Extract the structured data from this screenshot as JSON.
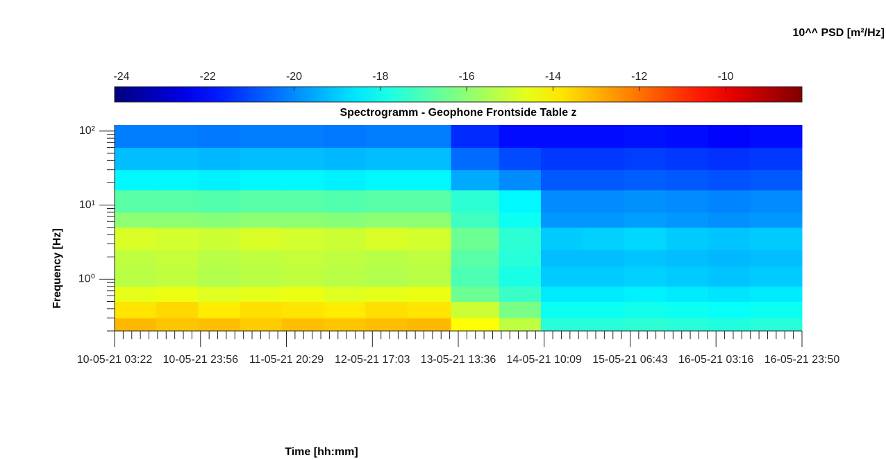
{
  "chart_data": {
    "type": "spectrogram",
    "title": "Spectrogramm - Geophone Frontside Table z",
    "xlabel": "Time [hh:mm]",
    "ylabel": "Frequency [Hz]",
    "colorbar_label": "10^^ PSD [m²/Hz]",
    "colormap": "jet",
    "yscale": "log",
    "xlim": [
      "2021-05-10T03:22",
      "2021-05-16T23:50"
    ],
    "xticks": [
      {
        "value": "2021-05-10T03:22",
        "label": "10-05-21 03:22"
      },
      {
        "value": "2021-05-10T23:56",
        "label": "10-05-21 23:56"
      },
      {
        "value": "2021-05-11T20:29",
        "label": "11-05-21 20:29"
      },
      {
        "value": "2021-05-12T17:03",
        "label": "12-05-21 17:03"
      },
      {
        "value": "2021-05-13T13:36",
        "label": "13-05-21 13:36"
      },
      {
        "value": "2021-05-14T10:09",
        "label": "14-05-21 10:09"
      },
      {
        "value": "2021-05-15T06:43",
        "label": "15-05-21 06:43"
      },
      {
        "value": "2021-05-16T03:16",
        "label": "16-05-21 03:16"
      },
      {
        "value": "2021-05-16T23:50",
        "label": "16-05-21 23:50"
      }
    ],
    "ylim": [
      0.2,
      121
    ],
    "yticks": [
      {
        "value": 1,
        "label": "10⁰"
      },
      {
        "value": 10,
        "label": "10¹"
      },
      {
        "value": 100,
        "label": "10²"
      }
    ],
    "yminorticks": [
      0.2,
      0.3,
      0.4,
      0.5,
      0.6,
      0.7,
      0.8,
      0.9,
      2,
      3,
      4,
      5,
      6,
      7,
      8,
      9,
      20,
      30,
      40,
      50,
      60,
      70,
      80,
      90
    ],
    "clim": [
      -24.16,
      -8.23
    ],
    "cticks": [
      -24,
      -22,
      -20,
      -18,
      -16,
      -14,
      -12,
      -10
    ],
    "xbins": [
      "2021-05-10T03:22",
      "2021-05-10T13:22",
      "2021-05-10T23:22",
      "2021-05-11T09:22",
      "2021-05-11T19:22",
      "2021-05-12T05:22",
      "2021-05-12T15:22",
      "2021-05-13T01:22",
      "2021-05-13T11:52",
      "2021-05-13T23:22",
      "2021-05-14T09:22",
      "2021-05-14T19:22",
      "2021-05-15T05:22",
      "2021-05-15T15:22",
      "2021-05-16T01:22",
      "2021-05-16T11:22",
      "2021-05-16T23:50"
    ],
    "ybins": [
      0.2,
      0.3,
      0.5,
      0.8,
      1.5,
      2.5,
      5,
      8,
      16,
      30,
      60,
      121
    ],
    "values": [
      [
        -13.1,
        -13.3,
        -13.2,
        -13.4,
        -13.2,
        -13.3,
        -13.2,
        -13.1,
        -14.2,
        -15.2,
        -17.6,
        -17.6,
        -17.5,
        -17.6,
        -17.7,
        -17.6
      ],
      [
        -13.8,
        -13.6,
        -13.9,
        -13.7,
        -13.8,
        -13.9,
        -13.7,
        -13.8,
        -15.0,
        -16.3,
        -18.0,
        -18.0,
        -17.9,
        -18.0,
        -18.1,
        -18.0
      ],
      [
        -14.6,
        -14.5,
        -14.7,
        -14.6,
        -14.5,
        -14.7,
        -14.6,
        -14.5,
        -16.5,
        -17.3,
        -18.5,
        -18.5,
        -18.4,
        -18.5,
        -18.6,
        -18.5
      ],
      [
        -15.3,
        -15.2,
        -15.4,
        -15.3,
        -15.2,
        -15.3,
        -15.4,
        -15.3,
        -17.0,
        -17.8,
        -19.0,
        -19.0,
        -18.9,
        -19.0,
        -19.1,
        -19.0
      ],
      [
        -15.2,
        -15.1,
        -15.3,
        -15.2,
        -15.1,
        -15.2,
        -15.3,
        -15.2,
        -16.8,
        -17.6,
        -19.2,
        -19.2,
        -19.1,
        -19.2,
        -19.3,
        -19.2
      ],
      [
        -14.8,
        -14.9,
        -15.0,
        -14.8,
        -14.9,
        -15.0,
        -14.8,
        -14.9,
        -16.5,
        -17.5,
        -19.0,
        -18.9,
        -18.8,
        -19.0,
        -19.1,
        -19.0
      ],
      [
        -16.0,
        -16.0,
        -16.1,
        -16.0,
        -16.0,
        -16.1,
        -16.0,
        -16.0,
        -17.2,
        -18.0,
        -19.8,
        -19.8,
        -19.7,
        -19.8,
        -19.9,
        -19.8
      ],
      [
        -16.8,
        -16.8,
        -16.9,
        -16.8,
        -16.8,
        -16.9,
        -16.8,
        -16.8,
        -17.5,
        -18.3,
        -20.0,
        -20.0,
        -19.9,
        -20.0,
        -20.1,
        -20.0
      ],
      [
        -18.3,
        -18.3,
        -18.4,
        -18.3,
        -18.3,
        -18.4,
        -18.3,
        -18.3,
        -19.5,
        -20.0,
        -20.8,
        -20.8,
        -20.7,
        -20.8,
        -20.9,
        -20.8
      ],
      [
        -19.2,
        -19.2,
        -19.3,
        -19.2,
        -19.2,
        -19.3,
        -19.2,
        -19.2,
        -20.5,
        -21.0,
        -21.3,
        -21.3,
        -21.2,
        -21.3,
        -21.4,
        -21.3
      ],
      [
        -20.2,
        -20.2,
        -20.3,
        -20.2,
        -20.2,
        -20.3,
        -20.2,
        -20.2,
        -21.5,
        -22.0,
        -22.0,
        -22.0,
        -21.9,
        -22.0,
        -22.1,
        -22.0
      ]
    ]
  }
}
